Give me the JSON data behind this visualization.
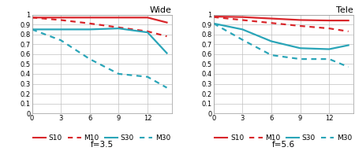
{
  "wide_title": "Wide",
  "tele_title": "Tele",
  "f_wide": "f=3.5",
  "f_tele": "f=5.6",
  "x": [
    0,
    3,
    6,
    9,
    12,
    14
  ],
  "wide": {
    "S10": [
      0.97,
      0.97,
      0.97,
      0.97,
      0.97,
      0.92
    ],
    "M10": [
      0.97,
      0.945,
      0.91,
      0.87,
      0.83,
      0.78
    ],
    "S30": [
      0.85,
      0.85,
      0.85,
      0.86,
      0.82,
      0.61
    ],
    "M30": [
      0.85,
      0.74,
      0.55,
      0.4,
      0.37,
      0.26
    ]
  },
  "tele": {
    "S10": [
      0.98,
      0.975,
      0.96,
      0.945,
      0.94,
      0.94
    ],
    "M10": [
      0.975,
      0.945,
      0.915,
      0.885,
      0.86,
      0.83
    ],
    "S30": [
      0.91,
      0.85,
      0.73,
      0.66,
      0.65,
      0.69
    ],
    "M30": [
      0.91,
      0.745,
      0.59,
      0.55,
      0.55,
      0.47
    ]
  },
  "color_red": "#d9262b",
  "color_cyan": "#2aa5b8",
  "ylim": [
    0,
    1.0
  ],
  "ytick_vals": [
    0,
    0.1,
    0.2,
    0.3,
    0.4,
    0.5,
    0.6,
    0.7,
    0.8,
    0.9,
    1.0
  ],
  "ytick_labels": [
    "0",
    "0.1",
    "0.2",
    "0.3",
    "0.4",
    "0.5",
    "0.6",
    "0.7",
    "0.8",
    "0.9",
    "1"
  ],
  "xticks": [
    0,
    3,
    6,
    9,
    12
  ],
  "xlim": [
    0,
    14.5
  ],
  "background": "#ffffff",
  "grid_color": "#c0c0c0",
  "title_fontsize": 8,
  "tick_fontsize": 6,
  "legend_fontsize": 6.5,
  "f_fontsize": 7.5
}
